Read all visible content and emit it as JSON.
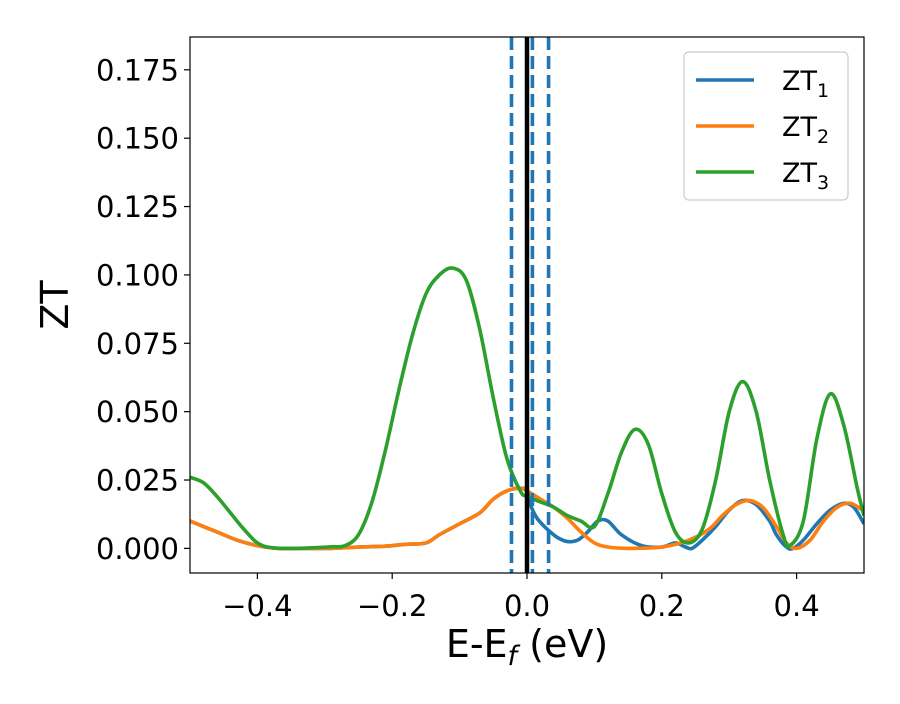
{
  "chart_data": {
    "type": "line",
    "xlabel": {
      "main": "E-E",
      "sub": "f",
      "suffix": " (eV)"
    },
    "ylabel": "ZT",
    "xlim": [
      -0.5,
      0.5
    ],
    "ylim": [
      -0.009,
      0.187
    ],
    "xticks": [
      -0.4,
      -0.2,
      0.0,
      0.2,
      0.4
    ],
    "xtick_labels": [
      "−0.4",
      "−0.2",
      "0.0",
      "0.2",
      "0.4"
    ],
    "yticks": [
      0.0,
      0.025,
      0.05,
      0.075,
      0.1,
      0.125,
      0.15,
      0.175
    ],
    "ytick_labels": [
      "0.000",
      "0.025",
      "0.050",
      "0.075",
      "0.100",
      "0.125",
      "0.150",
      "0.175"
    ],
    "grid": false,
    "legend_position": "top-right",
    "vertical_lines": [
      {
        "x": 0.0,
        "style": "solid",
        "color": "#000000"
      },
      {
        "x": -0.023,
        "style": "dashed",
        "color": "#1f77b4"
      },
      {
        "x": 0.008,
        "style": "dashed",
        "color": "#1f77b4"
      },
      {
        "x": 0.032,
        "style": "dashed",
        "color": "#1f77b4"
      }
    ],
    "series": [
      {
        "name": "ZT",
        "name_sub": "1",
        "color": "#1f77b4",
        "points": [
          [
            -0.5,
            0.01
          ],
          [
            -0.46,
            0.006
          ],
          [
            -0.43,
            0.003
          ],
          [
            -0.4,
            0.001
          ],
          [
            -0.37,
            0.0
          ],
          [
            -0.33,
            0.0
          ],
          [
            -0.29,
            0.0
          ],
          [
            -0.25,
            0.0005
          ],
          [
            -0.21,
            0.0008
          ],
          [
            -0.18,
            0.0015
          ],
          [
            -0.15,
            0.002
          ],
          [
            -0.13,
            0.005
          ],
          [
            -0.1,
            0.009
          ],
          [
            -0.07,
            0.013
          ],
          [
            -0.05,
            0.018
          ],
          [
            -0.03,
            0.021
          ],
          [
            -0.01,
            0.022
          ],
          [
            0.0,
            0.021
          ],
          [
            0.005,
            0.016
          ],
          [
            0.015,
            0.011
          ],
          [
            0.03,
            0.007
          ],
          [
            0.045,
            0.004
          ],
          [
            0.06,
            0.0025
          ],
          [
            0.075,
            0.003
          ],
          [
            0.09,
            0.006
          ],
          [
            0.105,
            0.01
          ],
          [
            0.12,
            0.01
          ],
          [
            0.14,
            0.005
          ],
          [
            0.17,
            0.001
          ],
          [
            0.2,
            0.0005
          ],
          [
            0.22,
            0.002
          ],
          [
            0.235,
            0.0005
          ],
          [
            0.245,
            0.0
          ],
          [
            0.26,
            0.003
          ],
          [
            0.28,
            0.008
          ],
          [
            0.3,
            0.014
          ],
          [
            0.32,
            0.0175
          ],
          [
            0.34,
            0.016
          ],
          [
            0.36,
            0.01
          ],
          [
            0.37,
            0.005
          ],
          [
            0.385,
            0.0005
          ],
          [
            0.395,
            0.0
          ],
          [
            0.41,
            0.003
          ],
          [
            0.43,
            0.009
          ],
          [
            0.45,
            0.014
          ],
          [
            0.47,
            0.0165
          ],
          [
            0.485,
            0.015
          ],
          [
            0.5,
            0.009
          ]
        ]
      },
      {
        "name": "ZT",
        "name_sub": "2",
        "color": "#ff7f0e",
        "points": [
          [
            -0.5,
            0.01
          ],
          [
            -0.46,
            0.006
          ],
          [
            -0.43,
            0.003
          ],
          [
            -0.4,
            0.001
          ],
          [
            -0.37,
            0.0
          ],
          [
            -0.33,
            0.0
          ],
          [
            -0.29,
            0.0
          ],
          [
            -0.25,
            0.0005
          ],
          [
            -0.21,
            0.0008
          ],
          [
            -0.18,
            0.0015
          ],
          [
            -0.15,
            0.002
          ],
          [
            -0.13,
            0.005
          ],
          [
            -0.1,
            0.009
          ],
          [
            -0.07,
            0.013
          ],
          [
            -0.05,
            0.018
          ],
          [
            -0.03,
            0.021
          ],
          [
            -0.01,
            0.022
          ],
          [
            0.0,
            0.021
          ],
          [
            0.02,
            0.018
          ],
          [
            0.04,
            0.015
          ],
          [
            0.06,
            0.011
          ],
          [
            0.08,
            0.006
          ],
          [
            0.1,
            0.002
          ],
          [
            0.12,
            0.0005
          ],
          [
            0.15,
            0.0
          ],
          [
            0.2,
            0.0005
          ],
          [
            0.24,
            0.003
          ],
          [
            0.27,
            0.007
          ],
          [
            0.29,
            0.012
          ],
          [
            0.31,
            0.016
          ],
          [
            0.33,
            0.0175
          ],
          [
            0.35,
            0.015
          ],
          [
            0.37,
            0.008
          ],
          [
            0.385,
            0.002
          ],
          [
            0.4,
            0.0
          ],
          [
            0.42,
            0.003
          ],
          [
            0.44,
            0.01
          ],
          [
            0.46,
            0.015
          ],
          [
            0.48,
            0.0165
          ],
          [
            0.5,
            0.0135
          ]
        ]
      },
      {
        "name": "ZT",
        "name_sub": "3",
        "color": "#2ca02c",
        "points": [
          [
            -0.5,
            0.026
          ],
          [
            -0.48,
            0.024
          ],
          [
            -0.46,
            0.019
          ],
          [
            -0.44,
            0.013
          ],
          [
            -0.42,
            0.007
          ],
          [
            -0.4,
            0.002
          ],
          [
            -0.38,
            0.0003
          ],
          [
            -0.35,
            0.0
          ],
          [
            -0.32,
            0.0002
          ],
          [
            -0.29,
            0.0006
          ],
          [
            -0.27,
            0.001
          ],
          [
            -0.25,
            0.005
          ],
          [
            -0.23,
            0.017
          ],
          [
            -0.21,
            0.036
          ],
          [
            -0.19,
            0.058
          ],
          [
            -0.17,
            0.078
          ],
          [
            -0.15,
            0.093
          ],
          [
            -0.13,
            0.1
          ],
          [
            -0.11,
            0.1025
          ],
          [
            -0.09,
            0.098
          ],
          [
            -0.07,
            0.08
          ],
          [
            -0.05,
            0.055
          ],
          [
            -0.03,
            0.033
          ],
          [
            -0.01,
            0.021
          ],
          [
            0.0,
            0.019
          ],
          [
            0.02,
            0.017
          ],
          [
            0.04,
            0.015
          ],
          [
            0.06,
            0.012
          ],
          [
            0.08,
            0.01
          ],
          [
            0.1,
            0.008
          ],
          [
            0.12,
            0.02
          ],
          [
            0.14,
            0.035
          ],
          [
            0.16,
            0.0435
          ],
          [
            0.18,
            0.038
          ],
          [
            0.2,
            0.02
          ],
          [
            0.22,
            0.006
          ],
          [
            0.24,
            0.002
          ],
          [
            0.26,
            0.007
          ],
          [
            0.28,
            0.025
          ],
          [
            0.3,
            0.05
          ],
          [
            0.32,
            0.061
          ],
          [
            0.34,
            0.05
          ],
          [
            0.36,
            0.025
          ],
          [
            0.38,
            0.005
          ],
          [
            0.39,
            0.001
          ],
          [
            0.41,
            0.01
          ],
          [
            0.43,
            0.04
          ],
          [
            0.45,
            0.0565
          ],
          [
            0.47,
            0.045
          ],
          [
            0.49,
            0.022
          ],
          [
            0.5,
            0.012
          ]
        ]
      }
    ]
  }
}
